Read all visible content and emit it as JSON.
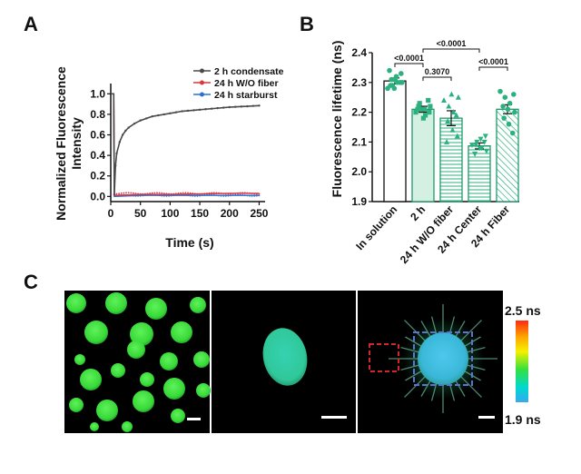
{
  "panels": {
    "a": "A",
    "b": "B",
    "c": "C"
  },
  "chart_data": [
    {
      "id": "A",
      "type": "line",
      "xlabel": "Time (s)",
      "ylabel": "Normalized Fluorescence Intensity",
      "xlim": [
        0,
        260
      ],
      "ylim": [
        -0.05,
        1.1
      ],
      "xticks": [
        0,
        50,
        100,
        150,
        200,
        250
      ],
      "yticks": [
        0.0,
        0.2,
        0.4,
        0.6,
        0.8,
        1.0
      ],
      "legend_position": "top-right",
      "series": [
        {
          "name": "2 h condensate",
          "color": "#4a4a4a",
          "x": [
            0,
            5,
            6,
            8,
            10,
            15,
            20,
            25,
            30,
            40,
            50,
            60,
            70,
            80,
            90,
            100,
            110,
            120,
            130,
            140,
            150,
            160,
            170,
            180,
            190,
            200,
            210,
            220,
            230,
            240,
            250
          ],
          "y": [
            1.0,
            1.0,
            0.02,
            0.3,
            0.42,
            0.53,
            0.6,
            0.64,
            0.67,
            0.71,
            0.74,
            0.76,
            0.78,
            0.79,
            0.8,
            0.81,
            0.82,
            0.83,
            0.835,
            0.84,
            0.845,
            0.85,
            0.855,
            0.86,
            0.865,
            0.87,
            0.873,
            0.876,
            0.878,
            0.882,
            0.885
          ]
        },
        {
          "name": "24 h W/O fiber",
          "color": "#d9363e",
          "x": [
            0,
            5,
            6,
            50,
            100,
            150,
            200,
            250
          ],
          "y": [
            1.0,
            1.0,
            0.01,
            0.02,
            0.02,
            0.025,
            0.03,
            0.03
          ]
        },
        {
          "name": "24 h starburst",
          "color": "#2f6fd0",
          "x": [
            0,
            5,
            6,
            50,
            100,
            150,
            200,
            250
          ],
          "y": [
            1.0,
            1.0,
            0.0,
            0.01,
            0.01,
            0.01,
            0.01,
            0.01
          ]
        }
      ]
    },
    {
      "id": "B",
      "type": "bar",
      "ylabel": "Fluorescence  lifetime (ns)",
      "ylim": [
        1.9,
        2.4
      ],
      "yticks": [
        1.9,
        2.0,
        2.1,
        2.2,
        2.3,
        2.4
      ],
      "categories": [
        "In solution",
        "2 h",
        "24 h W/O fiber",
        "24 h Center",
        "24 h Fiber"
      ],
      "values": [
        2.305,
        2.21,
        2.18,
        2.087,
        2.21
      ],
      "errors": [
        0.01,
        0.01,
        0.025,
        0.01,
        0.015
      ],
      "fills": [
        "white",
        "light-green",
        "horizontal-stripes",
        "horizontal-stripes",
        "diagonal-stripes"
      ],
      "markers": [
        "circle",
        "square",
        "triangle-up",
        "triangle-down",
        "circle"
      ],
      "color": "#2bb07f",
      "points": [
        [
          2.28,
          2.29,
          2.3,
          2.3,
          2.31,
          2.32,
          2.33,
          2.29,
          2.31,
          2.3,
          2.34,
          2.28
        ],
        [
          2.2,
          2.21,
          2.19,
          2.22,
          2.23,
          2.21,
          2.2,
          2.22,
          2.18,
          2.24,
          2.21
        ],
        [
          2.24,
          2.22,
          2.2,
          2.25,
          2.17,
          2.14,
          2.12,
          2.1,
          2.26,
          2.19
        ],
        [
          2.09,
          2.1,
          2.08,
          2.07,
          2.09,
          2.11,
          2.12,
          2.06,
          2.08,
          2.1
        ],
        [
          2.27,
          2.25,
          2.23,
          2.2,
          2.18,
          2.16,
          2.26,
          2.22,
          2.21,
          2.13
        ]
      ],
      "comparisons": [
        {
          "from": 0,
          "to": 1,
          "label": "<0.0001"
        },
        {
          "from": 1,
          "to": 2,
          "label": "0.3070"
        },
        {
          "from": 1,
          "to": 3,
          "label": "<0.0001"
        },
        {
          "from": 3,
          "to": 4,
          "label": "<0.0001"
        }
      ]
    }
  ],
  "panel_c": {
    "colorbar_max": "2.5 ns",
    "colorbar_min": "1.9 ns",
    "roi_colors": {
      "red": "#d2262b",
      "blue": "#5a73d6"
    }
  }
}
